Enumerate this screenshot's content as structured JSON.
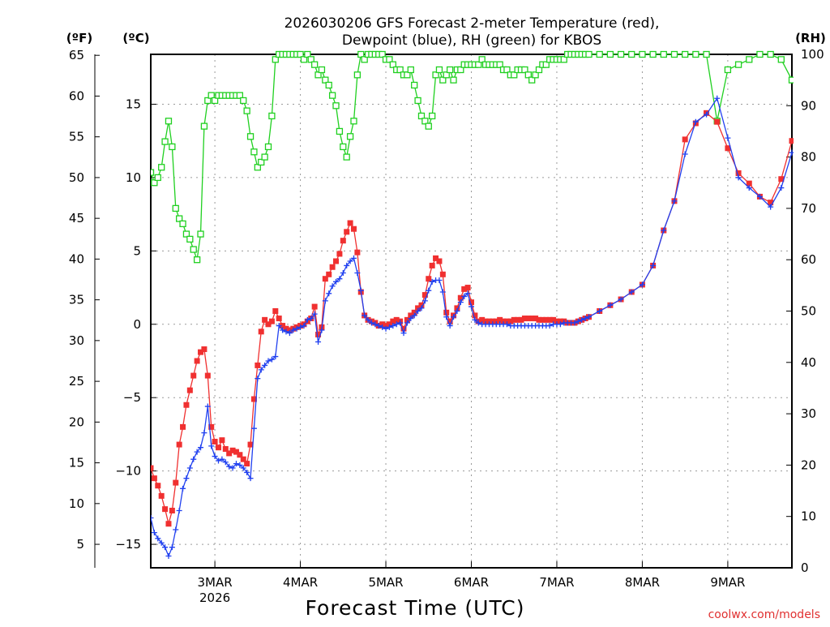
{
  "chart_data": {
    "type": "line",
    "title_lines": [
      "2026030206 GFS Forecast 2-meter Temperature (red),",
      "Dewpoint (blue), RH (green) for KBOS"
    ],
    "xlabel": "Forecast Time (UTC)",
    "credit": "coolwx.com/models",
    "units": {
      "fahrenheit": "(ºF)",
      "celsius": "(ºC)",
      "rh": "(RH)"
    },
    "x_unit": "hours since 2026-03-02 06Z",
    "x_range": [
      0,
      180
    ],
    "x_ticks": [
      {
        "x": 18,
        "label": "3MAR",
        "sublabel": "2026"
      },
      {
        "x": 42,
        "label": "4MAR",
        "sublabel": ""
      },
      {
        "x": 66,
        "label": "5MAR",
        "sublabel": ""
      },
      {
        "x": 90,
        "label": "6MAR",
        "sublabel": ""
      },
      {
        "x": 114,
        "label": "7MAR",
        "sublabel": ""
      },
      {
        "x": 138,
        "label": "8MAR",
        "sublabel": ""
      },
      {
        "x": 162,
        "label": "9MAR",
        "sublabel": ""
      }
    ],
    "y_celsius": {
      "range": [
        -16.6,
        18.4
      ],
      "ticks": [
        -15,
        -10,
        -5,
        0,
        5,
        10,
        15
      ]
    },
    "y_fahrenheit": {
      "ticks": [
        5,
        10,
        15,
        20,
        25,
        30,
        35,
        40,
        45,
        50,
        55,
        60,
        65
      ]
    },
    "y_rh": {
      "range": [
        0,
        100
      ],
      "ticks": [
        0,
        10,
        20,
        30,
        40,
        50,
        60,
        70,
        80,
        90,
        100
      ]
    },
    "grid": true,
    "series": [
      {
        "name": "2-meter Temperature",
        "unit": "C",
        "color": "#f03030",
        "marker": "filled-square",
        "x": [
          0,
          1,
          2,
          3,
          4,
          5,
          6,
          7,
          8,
          9,
          10,
          11,
          12,
          13,
          14,
          15,
          16,
          17,
          18,
          19,
          20,
          21,
          22,
          23,
          24,
          25,
          26,
          27,
          28,
          29,
          30,
          31,
          32,
          33,
          34,
          35,
          36,
          37,
          38,
          39,
          40,
          41,
          42,
          43,
          44,
          45,
          46,
          47,
          48,
          49,
          50,
          51,
          52,
          53,
          54,
          55,
          56,
          57,
          58,
          59,
          60,
          61,
          62,
          63,
          64,
          65,
          66,
          67,
          68,
          69,
          70,
          71,
          72,
          73,
          74,
          75,
          76,
          77,
          78,
          79,
          80,
          81,
          82,
          83,
          84,
          85,
          86,
          87,
          88,
          89,
          90,
          91,
          92,
          93,
          94,
          95,
          96,
          97,
          98,
          99,
          100,
          101,
          102,
          103,
          104,
          105,
          106,
          107,
          108,
          109,
          110,
          111,
          112,
          113,
          114,
          115,
          116,
          117,
          118,
          119,
          120,
          121,
          122,
          123,
          126,
          129,
          132,
          135,
          138,
          141,
          144,
          147,
          150,
          153,
          156,
          159,
          162,
          165,
          168,
          171,
          174,
          177,
          180
        ],
        "values": [
          -9.8,
          -10.5,
          -11.0,
          -11.7,
          -12.6,
          -13.6,
          -12.7,
          -10.8,
          -8.2,
          -7.0,
          -5.5,
          -4.5,
          -3.5,
          -2.5,
          -1.9,
          -1.7,
          -3.5,
          -7.0,
          -8.0,
          -8.4,
          -7.9,
          -8.5,
          -8.8,
          -8.6,
          -8.7,
          -8.9,
          -9.2,
          -9.5,
          -8.2,
          -5.1,
          -2.8,
          -0.5,
          0.3,
          0.0,
          0.2,
          0.9,
          0.4,
          -0.1,
          -0.3,
          -0.4,
          -0.3,
          -0.2,
          -0.1,
          0.0,
          0.2,
          0.4,
          1.2,
          -0.7,
          -0.2,
          3.1,
          3.4,
          3.9,
          4.3,
          4.8,
          5.7,
          6.3,
          6.9,
          6.5,
          4.9,
          2.2,
          0.6,
          0.3,
          0.2,
          0.1,
          -0.1,
          0.0,
          -0.1,
          0.0,
          0.2,
          0.3,
          0.2,
          -0.3,
          0.3,
          0.6,
          0.8,
          1.1,
          1.3,
          2.0,
          3.1,
          4.0,
          4.5,
          4.3,
          3.4,
          0.8,
          0.2,
          0.6,
          1.1,
          1.8,
          2.4,
          2.5,
          1.5,
          0.6,
          0.2,
          0.3,
          0.2,
          0.2,
          0.2,
          0.2,
          0.3,
          0.2,
          0.2,
          0.2,
          0.3,
          0.3,
          0.3,
          0.4,
          0.4,
          0.4,
          0.4,
          0.3,
          0.3,
          0.3,
          0.3,
          0.3,
          0.2,
          0.2,
          0.2,
          0.1,
          0.1,
          0.1,
          0.2,
          0.3,
          0.4,
          0.5,
          0.9,
          1.3,
          1.7,
          2.2,
          2.7,
          4.0,
          6.4,
          8.4,
          12.6,
          13.7,
          14.4,
          13.8,
          12.0,
          10.3,
          9.6,
          8.7,
          8.3,
          9.9,
          12.5
        ],
        "rounding_note": "estimated from gridlines"
      },
      {
        "name": "Dewpoint",
        "unit": "C",
        "color": "#2040f0",
        "marker": "plus",
        "x": [
          0,
          1,
          2,
          3,
          4,
          5,
          6,
          7,
          8,
          9,
          10,
          11,
          12,
          13,
          14,
          15,
          16,
          17,
          18,
          19,
          20,
          21,
          22,
          23,
          24,
          25,
          26,
          27,
          28,
          29,
          30,
          31,
          32,
          33,
          34,
          35,
          36,
          37,
          38,
          39,
          40,
          41,
          42,
          43,
          44,
          45,
          46,
          47,
          48,
          49,
          50,
          51,
          52,
          53,
          54,
          55,
          56,
          57,
          58,
          59,
          60,
          61,
          62,
          63,
          64,
          65,
          66,
          67,
          68,
          69,
          70,
          71,
          72,
          73,
          74,
          75,
          76,
          77,
          78,
          79,
          80,
          81,
          82,
          83,
          84,
          85,
          86,
          87,
          88,
          89,
          90,
          91,
          92,
          93,
          94,
          95,
          96,
          97,
          98,
          99,
          100,
          101,
          102,
          103,
          104,
          105,
          106,
          107,
          108,
          109,
          110,
          111,
          112,
          113,
          114,
          115,
          116,
          117,
          118,
          119,
          120,
          121,
          122,
          123,
          126,
          129,
          132,
          135,
          138,
          141,
          144,
          147,
          150,
          153,
          156,
          159,
          162,
          165,
          168,
          171,
          174,
          177,
          180
        ],
        "values": [
          -13.2,
          -14.2,
          -14.6,
          -14.9,
          -15.2,
          -15.8,
          -15.2,
          -14.0,
          -12.7,
          -11.2,
          -10.5,
          -9.8,
          -9.2,
          -8.7,
          -8.4,
          -7.4,
          -5.6,
          -8.3,
          -9.0,
          -9.3,
          -9.2,
          -9.4,
          -9.7,
          -9.8,
          -9.5,
          -9.6,
          -9.8,
          -10.1,
          -10.5,
          -7.1,
          -3.7,
          -3.1,
          -2.8,
          -2.5,
          -2.4,
          -2.2,
          -0.1,
          -0.4,
          -0.5,
          -0.6,
          -0.4,
          -0.3,
          -0.2,
          -0.1,
          0.3,
          0.4,
          0.7,
          -1.2,
          -0.4,
          1.6,
          2.1,
          2.6,
          2.9,
          3.1,
          3.5,
          4.0,
          4.3,
          4.5,
          3.5,
          2.3,
          0.6,
          0.3,
          0.1,
          0.0,
          -0.1,
          -0.2,
          -0.3,
          -0.2,
          -0.1,
          0.0,
          0.1,
          -0.6,
          0.1,
          0.4,
          0.6,
          0.9,
          1.1,
          1.6,
          2.3,
          2.9,
          3.0,
          3.0,
          2.2,
          0.5,
          -0.1,
          0.5,
          0.9,
          1.5,
          1.9,
          2.1,
          1.2,
          0.3,
          0.1,
          0.0,
          0.0,
          0.0,
          0.0,
          0.0,
          0.0,
          0.0,
          0.0,
          -0.1,
          -0.1,
          -0.1,
          -0.1,
          -0.1,
          -0.1,
          -0.1,
          -0.1,
          -0.1,
          -0.1,
          -0.1,
          -0.1,
          0.0,
          0.0,
          0.0,
          0.1,
          0.1,
          0.1,
          0.1,
          0.2,
          0.3,
          0.4,
          0.5,
          0.9,
          1.3,
          1.7,
          2.2,
          2.7,
          4.0,
          6.4,
          8.4,
          11.6,
          13.8,
          14.3,
          15.4,
          12.7,
          10.0,
          9.3,
          8.7,
          8.0,
          9.3,
          11.7
        ],
        "rounding_note": "estimated from gridlines"
      },
      {
        "name": "Relative Humidity",
        "unit": "%",
        "color": "#20d020",
        "marker": "open-square",
        "x": [
          0,
          1,
          2,
          3,
          4,
          5,
          6,
          7,
          8,
          9,
          10,
          11,
          12,
          13,
          14,
          15,
          16,
          17,
          18,
          19,
          20,
          21,
          22,
          23,
          24,
          25,
          26,
          27,
          28,
          29,
          30,
          31,
          32,
          33,
          34,
          35,
          36,
          37,
          38,
          39,
          40,
          41,
          42,
          43,
          44,
          45,
          46,
          47,
          48,
          49,
          50,
          51,
          52,
          53,
          54,
          55,
          56,
          57,
          58,
          59,
          60,
          61,
          62,
          63,
          64,
          65,
          66,
          67,
          68,
          69,
          70,
          71,
          72,
          73,
          74,
          75,
          76,
          77,
          78,
          79,
          80,
          81,
          82,
          83,
          84,
          85,
          86,
          87,
          88,
          89,
          90,
          91,
          92,
          93,
          94,
          95,
          96,
          97,
          98,
          99,
          100,
          101,
          102,
          103,
          104,
          105,
          106,
          107,
          108,
          109,
          110,
          111,
          112,
          113,
          114,
          115,
          116,
          117,
          118,
          119,
          120,
          121,
          122,
          123,
          126,
          129,
          132,
          135,
          138,
          141,
          144,
          147,
          150,
          153,
          156,
          159,
          162,
          165,
          168,
          171,
          174,
          177,
          180
        ],
        "values": [
          77,
          75,
          76,
          78,
          83,
          87,
          82,
          70,
          68,
          67,
          65,
          64,
          62,
          60,
          65,
          86,
          91,
          92,
          91,
          92,
          92,
          92,
          92,
          92,
          92,
          92,
          91,
          89,
          84,
          81,
          78,
          79,
          80,
          82,
          88,
          99,
          100,
          100,
          100,
          100,
          100,
          100,
          100,
          99,
          100,
          99,
          98,
          96,
          97,
          95,
          94,
          92,
          90,
          85,
          82,
          80,
          84,
          87,
          96,
          100,
          99,
          100,
          100,
          100,
          100,
          100,
          99,
          99,
          98,
          97,
          97,
          96,
          96,
          97,
          94,
          91,
          88,
          87,
          86,
          88,
          96,
          97,
          95,
          96,
          97,
          95,
          97,
          97,
          98,
          98,
          98,
          98,
          98,
          99,
          98,
          98,
          98,
          98,
          98,
          97,
          97,
          96,
          96,
          97,
          97,
          97,
          96,
          95,
          96,
          97,
          98,
          98,
          99,
          99,
          99,
          99,
          99,
          100,
          100,
          100,
          100,
          100,
          100,
          100,
          100,
          100,
          100,
          100,
          100,
          100,
          100,
          100,
          100,
          100,
          100,
          87,
          97,
          98,
          99,
          100,
          100,
          99,
          95
        ],
        "rounding_note": "estimated from gridlines"
      }
    ]
  }
}
